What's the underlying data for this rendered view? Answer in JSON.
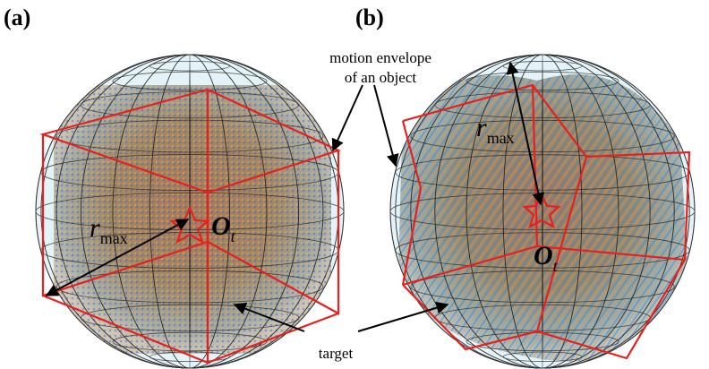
{
  "panels": [
    {
      "label": "(a)",
      "radius_label": {
        "symbol": "r",
        "subscript": "max"
      },
      "center_label": {
        "symbol": "O",
        "subscript": "t"
      }
    },
    {
      "label": "(b)",
      "radius_label": {
        "symbol": "r",
        "subscript": "max"
      },
      "center_label": {
        "symbol": "O",
        "subscript": "t"
      }
    }
  ],
  "annotations": {
    "motion_envelope": [
      "motion envelope",
      "of an object"
    ],
    "target": "target"
  }
}
